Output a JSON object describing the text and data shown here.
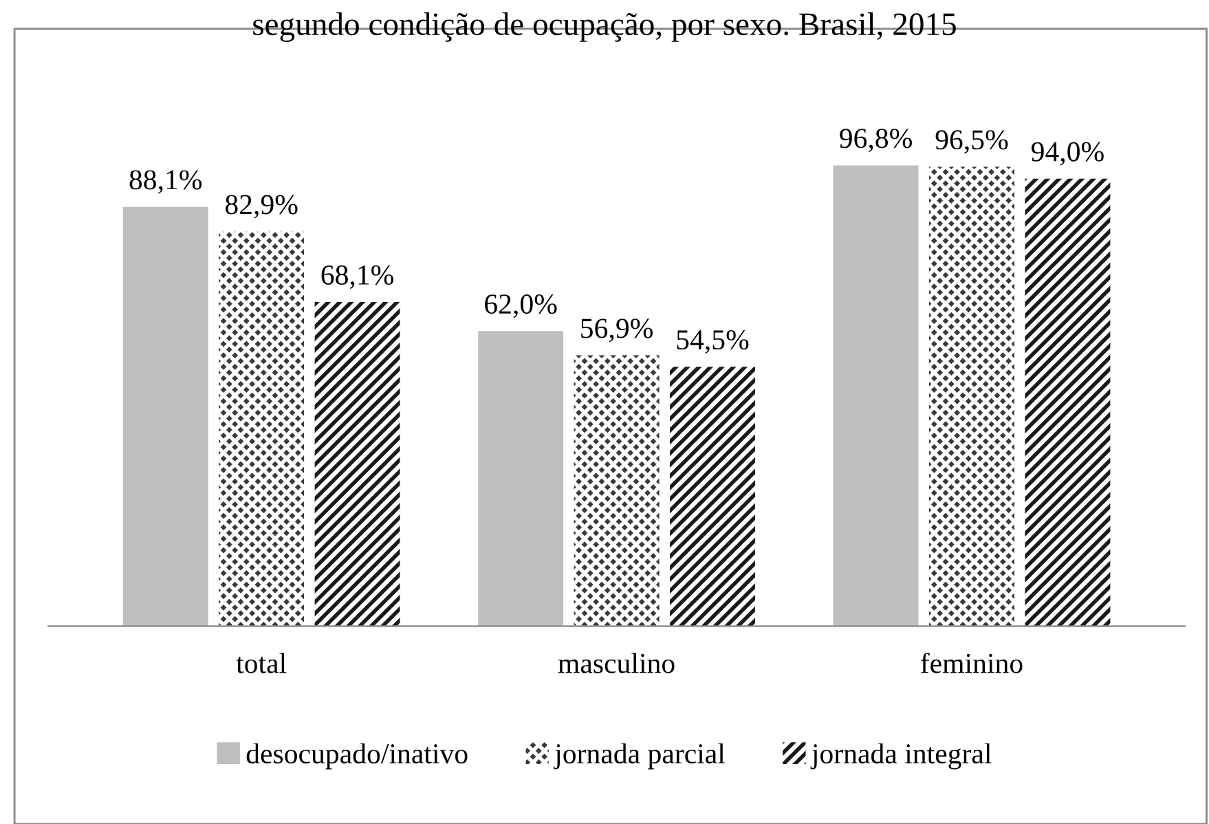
{
  "chart_data": {
    "type": "bar",
    "title": "segundo condição de ocupação, por sexo. Brasil, 2015",
    "categories": [
      "total",
      "masculino",
      "feminino"
    ],
    "series": [
      {
        "name": "desocupado/inativo",
        "color": "#bfbfbf",
        "values": [
          88.1,
          62.0,
          96.8
        ],
        "value_labels": [
          "88,1%",
          "62,0%",
          "96,8%"
        ]
      },
      {
        "name": "jornada parcial",
        "color": "#3a3a3a",
        "values": [
          82.9,
          56.9,
          96.5
        ],
        "value_labels": [
          "82,9%",
          "56,9%",
          "96,5%"
        ]
      },
      {
        "name": "jornada integral",
        "color": "#1a1a1a",
        "values": [
          68.1,
          54.5,
          94.0
        ],
        "value_labels": [
          "68,1%",
          "54,5%",
          "94,0%"
        ]
      }
    ],
    "legend": "bottom",
    "grid": false
  }
}
